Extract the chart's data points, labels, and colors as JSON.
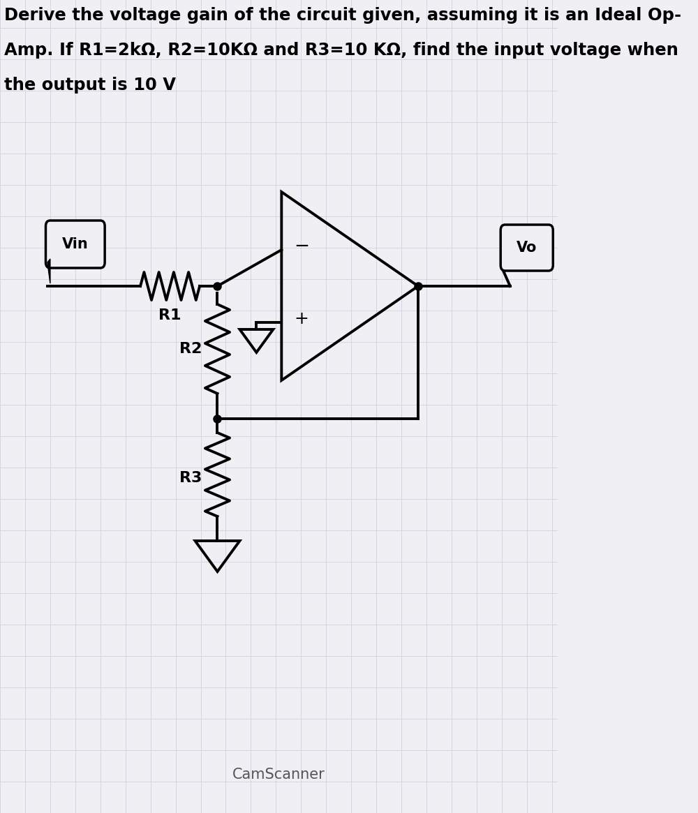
{
  "title_line1": "Derive the voltage gain of the circuit given, assuming it is an Ideal Op-",
  "title_line2": "Amp. If R1=2kΩ, R2=10KΩ and R3=10 KΩ, find the input voltage when",
  "title_line3": "the output is 10 V",
  "camscanner_text": "CamScanner",
  "bg_color": "#f0f0f4",
  "grid_color": "#d0d0e0",
  "label_vin": "Vin",
  "label_vo": "Vo",
  "label_r1": "R1",
  "label_r2": "R2",
  "label_r3": "R3",
  "label_minus": "−",
  "label_plus": "+",
  "line_color": "#000000",
  "text_color": "#000000",
  "title_fontsize": 17.5,
  "label_fontsize": 16,
  "lw": 2.8
}
